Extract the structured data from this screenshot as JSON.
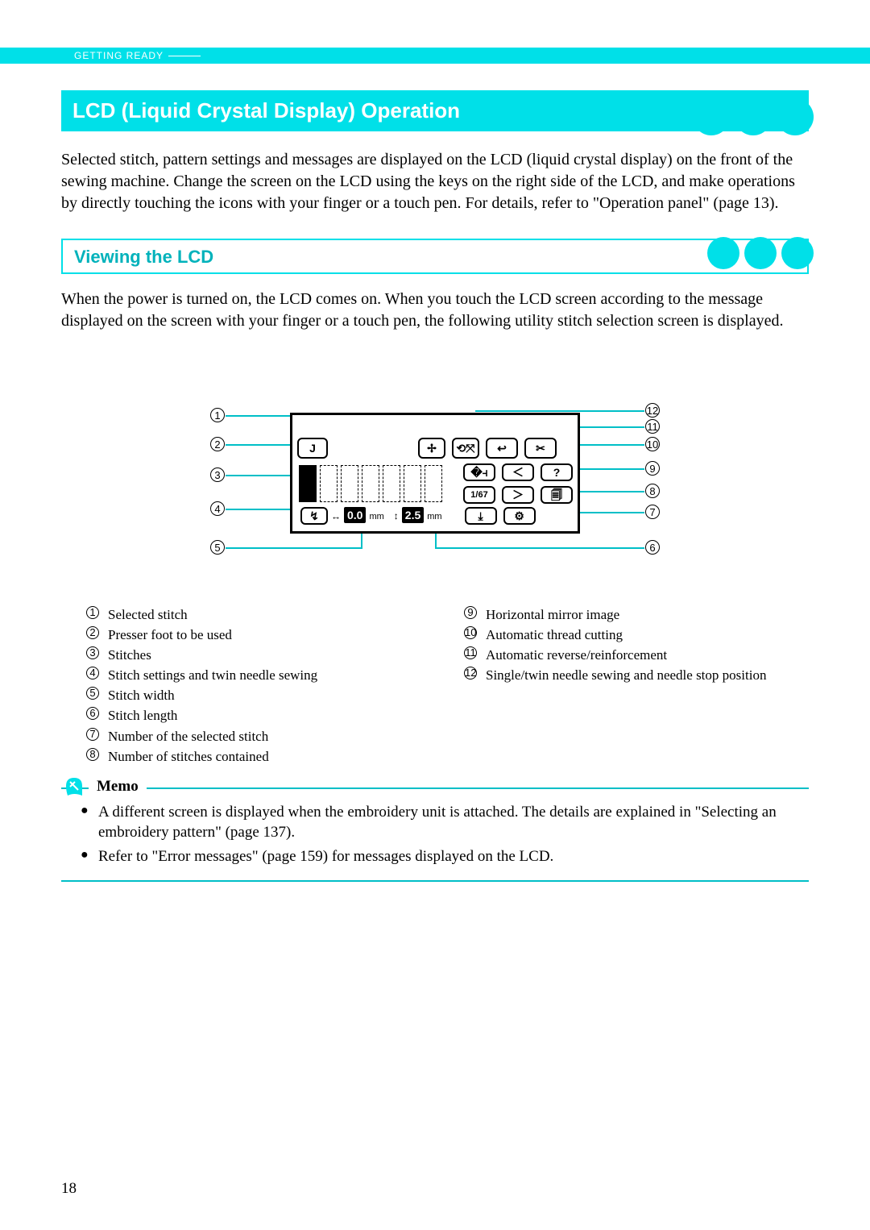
{
  "colors": {
    "accent": "#00e0e8",
    "accent_dark": "#00bfc7",
    "accent_text": "#00b2bb"
  },
  "header_tab": "GETTING READY",
  "h1": "LCD (Liquid Crystal Display) Operation",
  "intro": "Selected stitch, pattern settings and messages are displayed on the LCD (liquid crystal display) on the front of the sewing machine. Change the screen on the LCD using the keys on the right side of the LCD, and make operations by directly touching the icons with your finger or a touch pen. For details, refer to \"Operation panel\" (page 13).",
  "h2": "Viewing the LCD",
  "para2": "When the power is turned on, the LCD comes on. When you touch the LCD screen according to the message displayed on the screen with your finger or a touch pen, the following utility stitch selection screen is displayed.",
  "lcd": {
    "presser_foot_code": "J",
    "page_indicator": "1/67",
    "width_value": "0.0",
    "width_unit": "mm",
    "length_value": "2.5",
    "length_unit": "mm"
  },
  "legend_left": [
    {
      "n": "1",
      "t": "Selected stitch"
    },
    {
      "n": "2",
      "t": "Presser foot to be used"
    },
    {
      "n": "3",
      "t": "Stitches"
    },
    {
      "n": "4",
      "t": "Stitch settings and twin needle sewing"
    },
    {
      "n": "5",
      "t": "Stitch width"
    },
    {
      "n": "6",
      "t": "Stitch length"
    },
    {
      "n": "7",
      "t": "Number of the selected stitch"
    },
    {
      "n": "8",
      "t": "Number of stitches contained"
    }
  ],
  "legend_right": [
    {
      "n": "9",
      "t": "Horizontal mirror image"
    },
    {
      "n": "10",
      "t": "Automatic thread cutting"
    },
    {
      "n": "11",
      "t": "Automatic reverse/reinforcement"
    },
    {
      "n": "12",
      "t": "Single/twin needle sewing and needle stop position"
    }
  ],
  "memo_title": "Memo",
  "memo_items": [
    "A different screen is displayed when the embroidery unit is attached. The details are explained in \"Selecting an embroidery pattern\" (page 137).",
    "Refer to \"Error messages\" (page 159) for messages displayed on the LCD."
  ],
  "page_number": "18"
}
